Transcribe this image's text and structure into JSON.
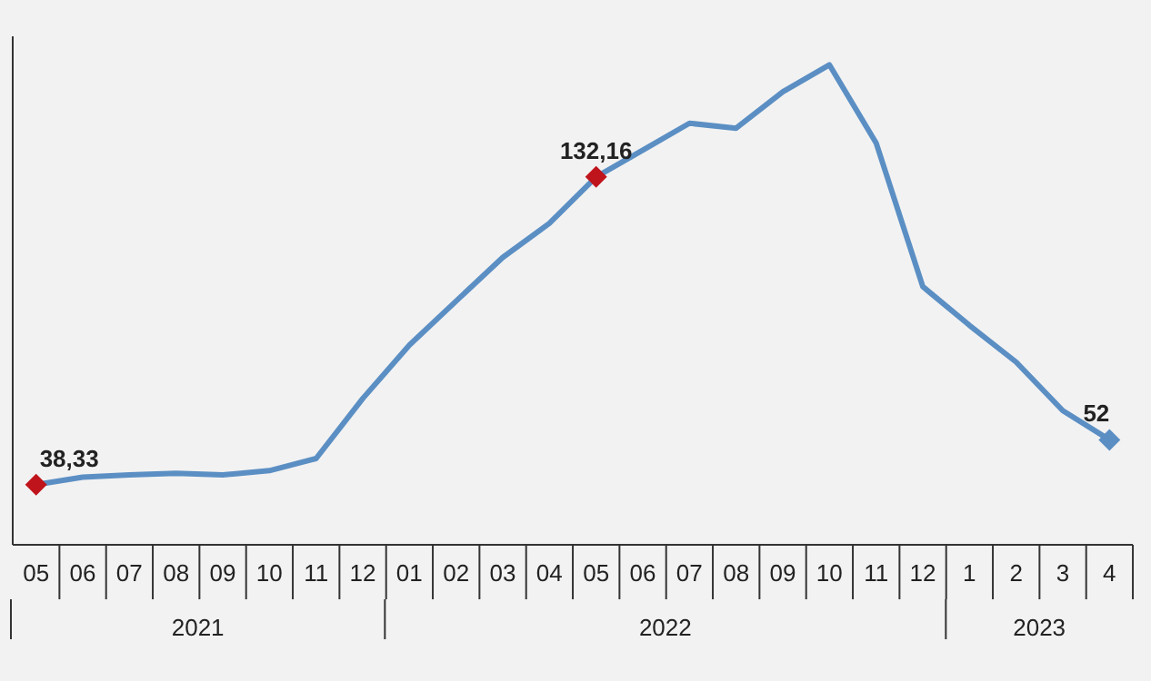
{
  "chart_data": {
    "type": "line",
    "categories": [
      "05",
      "06",
      "07",
      "08",
      "09",
      "10",
      "11",
      "12",
      "01",
      "02",
      "03",
      "04",
      "05",
      "06",
      "07",
      "08",
      "09",
      "10",
      "11",
      "12",
      "1",
      "2",
      "3",
      "4"
    ],
    "series": [
      {
        "color": "#5b8fc4",
        "values": [
          38.33,
          40.6,
          41.3,
          41.8,
          41.3,
          42.6,
          46.3,
          64.6,
          80.9,
          94.3,
          107.6,
          118.0,
          132.16,
          140.3,
          148.5,
          147.0,
          158.1,
          166.3,
          142.5,
          98.7,
          86.9,
          75.7,
          60.9,
          52
        ],
        "value_labels": [
          "38,33",
          null,
          null,
          null,
          null,
          null,
          null,
          null,
          null,
          null,
          null,
          null,
          "132,16",
          null,
          null,
          null,
          null,
          null,
          null,
          null,
          null,
          null,
          null,
          "52"
        ],
        "colors": [
          "#c0141c",
          null,
          null,
          null,
          null,
          null,
          null,
          null,
          null,
          null,
          null,
          null,
          "#c0141c",
          null,
          null,
          null,
          null,
          null,
          null,
          null,
          null,
          null,
          null,
          "#5b8fc4"
        ]
      }
    ],
    "annotations": [
      "2021",
      "2022",
      "2023"
    ],
    "ylim": [
      20,
      175
    ],
    "tick_labels": "x"
  }
}
